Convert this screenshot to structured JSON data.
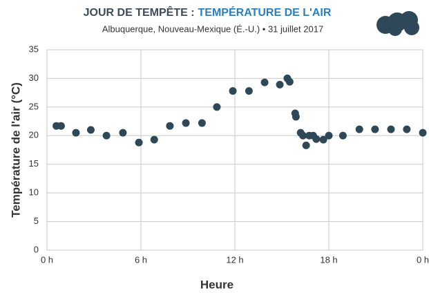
{
  "chart_data": {
    "type": "scatter",
    "title": "JOUR DE TEMPÊTE :",
    "title_highlight": "TEMPÉRATURE DE L'AIR",
    "subtitle": "Albuquerque, Nouveau-Mexique (É.-U.) • 31 juillet 2017",
    "xlabel": "Heure",
    "ylabel": "Température de l'air (°C)",
    "color": "#2f4858",
    "title_color": "#3d4a57",
    "highlight_color": "#2a7fc0",
    "grid": true,
    "x": [
      0.6,
      0.9,
      1.85,
      2.8,
      3.8,
      4.85,
      5.87,
      6.85,
      7.85,
      8.87,
      9.9,
      10.85,
      11.87,
      12.9,
      13.9,
      14.87,
      15.35,
      15.5,
      15.85,
      15.9,
      16.2,
      16.35,
      16.55,
      16.75,
      17.0,
      17.2,
      17.65,
      18.0,
      18.9,
      19.95,
      20.95,
      21.97,
      22.98,
      24.0
    ],
    "values": [
      21.7,
      21.7,
      20.5,
      21.0,
      20.0,
      20.5,
      18.8,
      19.3,
      21.7,
      22.2,
      22.2,
      25.0,
      27.8,
      27.8,
      29.3,
      28.9,
      30.0,
      29.4,
      23.9,
      23.3,
      20.5,
      20.0,
      18.3,
      20.0,
      20.0,
      19.4,
      19.3,
      20.0,
      20.0,
      21.1,
      21.1,
      21.1,
      21.1,
      20.5
    ],
    "xlim": [
      0,
      24
    ],
    "xticks": [
      {
        "value": 0,
        "label": "0 h"
      },
      {
        "value": 6,
        "label": "6 h"
      },
      {
        "value": 12,
        "label": "12 h"
      },
      {
        "value": 18,
        "label": "18 h"
      },
      {
        "value": 24,
        "label": "0 h"
      }
    ],
    "ylim": [
      0,
      35
    ],
    "yticks": [
      0,
      5,
      10,
      15,
      20,
      25,
      30,
      35
    ]
  }
}
